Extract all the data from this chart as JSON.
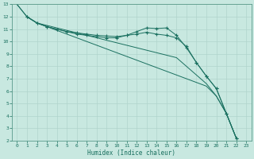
{
  "title": "",
  "xlabel": "Humidex (Indice chaleur)",
  "ylabel": "",
  "bg_color": "#c8e8e0",
  "line_color": "#1a7060",
  "grid_color": "#b0d4cc",
  "xlim": [
    -0.5,
    23.5
  ],
  "ylim": [
    2,
    13
  ],
  "xticks": [
    0,
    1,
    2,
    3,
    4,
    5,
    6,
    7,
    8,
    9,
    10,
    11,
    12,
    13,
    14,
    15,
    16,
    17,
    18,
    19,
    20,
    21,
    22,
    23
  ],
  "yticks": [
    2,
    3,
    4,
    5,
    6,
    7,
    8,
    9,
    10,
    11,
    12,
    13
  ],
  "lines": [
    {
      "x": [
        0,
        1,
        2,
        3,
        4,
        5,
        6,
        7,
        8,
        9,
        10,
        11,
        12,
        13,
        14,
        15,
        16,
        17,
        18,
        19,
        20,
        21,
        22
      ],
      "y": [
        13.0,
        12.0,
        11.5,
        11.3,
        11.1,
        10.9,
        10.7,
        10.5,
        10.3,
        10.1,
        9.9,
        9.7,
        9.5,
        9.3,
        9.1,
        8.9,
        8.7,
        8.0,
        7.3,
        6.6,
        5.6,
        4.2,
        2.2
      ],
      "marker": false
    },
    {
      "x": [
        0,
        1,
        2,
        3,
        4,
        5,
        6,
        7,
        8,
        9,
        10,
        11,
        12,
        13,
        14,
        15,
        16,
        17,
        18,
        19,
        20,
        21,
        22
      ],
      "y": [
        13.0,
        12.0,
        11.5,
        11.2,
        10.9,
        10.6,
        10.3,
        10.0,
        9.7,
        9.4,
        9.1,
        8.8,
        8.5,
        8.2,
        7.9,
        7.6,
        7.3,
        7.0,
        6.7,
        6.4,
        5.6,
        4.2,
        2.2
      ],
      "marker": false
    },
    {
      "x": [
        1,
        2,
        3,
        4,
        5,
        6,
        7,
        8,
        9,
        10,
        11,
        12,
        13,
        14,
        15,
        16,
        17,
        18,
        19,
        20,
        21,
        22
      ],
      "y": [
        12.0,
        11.5,
        11.2,
        11.0,
        10.8,
        10.7,
        10.6,
        10.5,
        10.45,
        10.4,
        10.5,
        10.6,
        10.75,
        10.6,
        10.5,
        10.3,
        9.6,
        8.3,
        7.2,
        6.2,
        4.2,
        2.2
      ],
      "marker": true
    },
    {
      "x": [
        1,
        2,
        3,
        4,
        5,
        6,
        7,
        8,
        9,
        10,
        11,
        12,
        13,
        14,
        15,
        16,
        17,
        18,
        19,
        20,
        21,
        22
      ],
      "y": [
        12.0,
        11.5,
        11.2,
        11.0,
        10.8,
        10.6,
        10.5,
        10.4,
        10.3,
        10.3,
        10.5,
        10.8,
        11.1,
        11.05,
        11.1,
        10.5,
        9.5,
        8.3,
        7.2,
        6.2,
        4.2,
        2.2
      ],
      "marker": true
    }
  ]
}
